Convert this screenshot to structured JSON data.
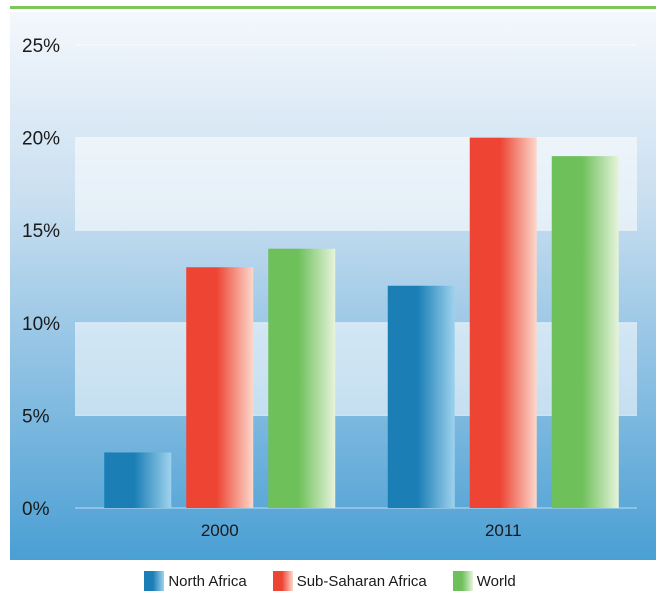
{
  "chart_data": {
    "type": "bar",
    "title": "",
    "xlabel": "",
    "ylabel": "",
    "categories": [
      "2000",
      "2011"
    ],
    "series": [
      {
        "name": "North Africa",
        "values": [
          3,
          12
        ],
        "color": "#1b7fb6",
        "color_light": "#9fd2ee"
      },
      {
        "name": "Sub-Saharan Africa",
        "values": [
          13,
          20
        ],
        "color": "#ee4433",
        "color_light": "#fbd8cc"
      },
      {
        "name": "World",
        "values": [
          14,
          19
        ],
        "color": "#6ec05a",
        "color_light": "#e6f4dc"
      }
    ],
    "ylim": [
      0,
      25
    ],
    "yticks": [
      0,
      5,
      10,
      15,
      20,
      25
    ],
    "ytick_labels": [
      "0%",
      "5%",
      "10%",
      "15%",
      "20%",
      "25%"
    ],
    "grid": "horizontal bands",
    "legend_position": "bottom-center",
    "background_colors": [
      "#4a9fd4",
      "#f4f8fc"
    ]
  }
}
